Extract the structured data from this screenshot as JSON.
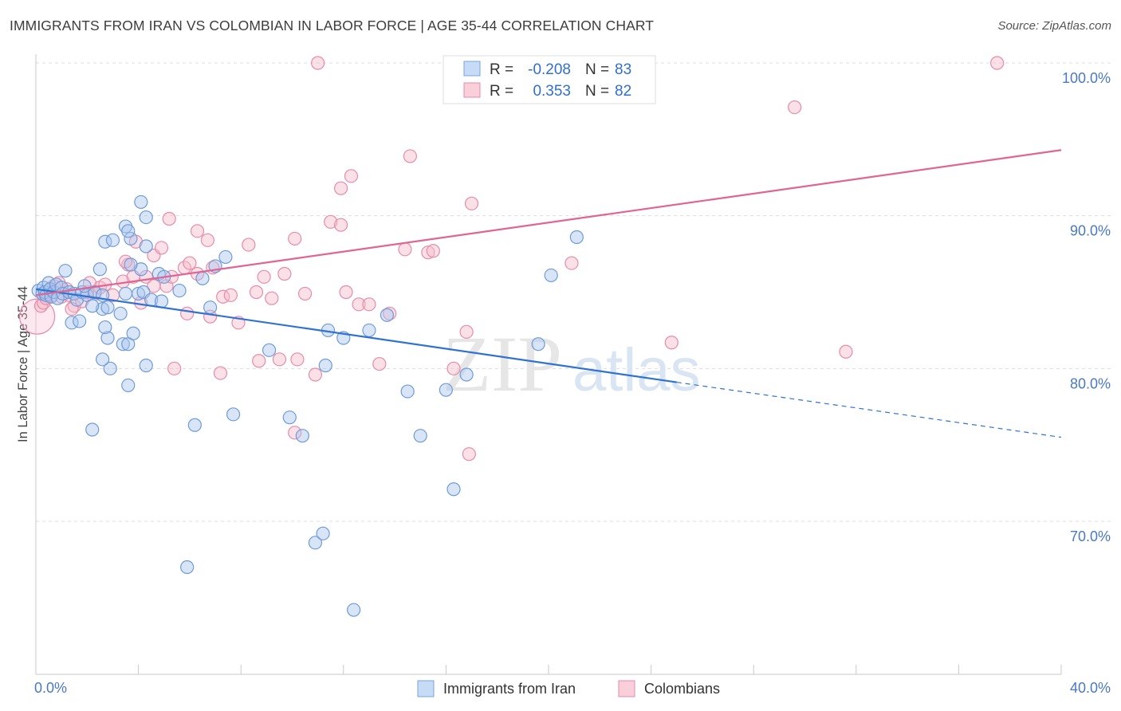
{
  "header": {
    "title": "IMMIGRANTS FROM IRAN VS COLOMBIAN IN LABOR FORCE | AGE 35-44 CORRELATION CHART",
    "source": "Source: ZipAtlas.com"
  },
  "watermark": {
    "part1": "ZIP",
    "part2": "atlas"
  },
  "colors": {
    "blue_fill": "#a9c6ee",
    "blue_stroke": "#6f9ad9",
    "blue_line": "#2f72d1",
    "pink_fill": "#f5bccd",
    "pink_stroke": "#e98aa8",
    "pink_line": "#e06592",
    "label_blue": "#4a78c8",
    "grid": "#dddddd"
  },
  "stats_box": {
    "rows": [
      {
        "r_label": "R =",
        "r_value": "-0.208",
        "n_label": "N =",
        "n_value": "83",
        "series": "blue"
      },
      {
        "r_label": "R =",
        "r_value": "0.353",
        "n_label": "N =",
        "n_value": "82",
        "series": "pink"
      }
    ]
  },
  "chart_data": {
    "type": "scatter",
    "title": "IMMIGRANTS FROM IRAN VS COLOMBIAN IN LABOR FORCE | AGE 35-44 CORRELATION CHART",
    "xlabel": "",
    "ylabel": "In Labor Force | Age 35-44",
    "xlim": [
      0,
      40
    ],
    "ylim": [
      61.5,
      101.5
    ],
    "x_tick_labels": [
      "0.0%",
      "40.0%"
    ],
    "y_ticks": [
      70,
      80,
      90,
      100
    ],
    "y_tick_labels": [
      "70.0%",
      "80.0%",
      "90.0%",
      "100.0%"
    ],
    "grid": "horizontal dashed",
    "legend_position": "bottom-center",
    "series": [
      {
        "name": "Immigrants from Iran",
        "color": "blue",
        "trend": {
          "x": [
            0,
            25
          ],
          "y": [
            85.2,
            79.1
          ],
          "dashed_to": [
            40,
            75.5
          ]
        },
        "points": [
          [
            0.1,
            85.1
          ],
          [
            0.25,
            84.9
          ],
          [
            0.3,
            85.3
          ],
          [
            0.35,
            85.0
          ],
          [
            0.4,
            84.8
          ],
          [
            0.5,
            85.6
          ],
          [
            0.55,
            85.2
          ],
          [
            0.6,
            84.7
          ],
          [
            0.7,
            85.0
          ],
          [
            0.8,
            85.5
          ],
          [
            0.85,
            84.6
          ],
          [
            1.0,
            85.3
          ],
          [
            1.05,
            84.9
          ],
          [
            1.15,
            86.4
          ],
          [
            1.3,
            85.0
          ],
          [
            1.5,
            84.9
          ],
          [
            1.6,
            84.5
          ],
          [
            1.8,
            85.0
          ],
          [
            2.0,
            84.8
          ],
          [
            2.3,
            85.0
          ],
          [
            1.4,
            83.0
          ],
          [
            1.7,
            83.1
          ],
          [
            2.8,
            82.0
          ],
          [
            3.4,
            81.6
          ],
          [
            3.6,
            81.6
          ],
          [
            2.9,
            80.0
          ],
          [
            2.6,
            80.6
          ],
          [
            2.7,
            82.7
          ],
          [
            3.8,
            82.3
          ],
          [
            1.9,
            85.4
          ],
          [
            2.5,
            86.5
          ],
          [
            2.6,
            83.9
          ],
          [
            2.2,
            84.1
          ],
          [
            2.6,
            84.8
          ],
          [
            3.5,
            84.9
          ],
          [
            3.3,
            83.6
          ],
          [
            4.0,
            84.9
          ],
          [
            4.2,
            85.0
          ],
          [
            4.5,
            84.5
          ],
          [
            4.1,
            86.5
          ],
          [
            3.7,
            86.8
          ],
          [
            4.3,
            88.0
          ],
          [
            4.8,
            86.2
          ],
          [
            4.9,
            84.4
          ],
          [
            5.0,
            86.0
          ],
          [
            5.6,
            85.1
          ],
          [
            6.5,
            85.9
          ],
          [
            7.0,
            86.7
          ],
          [
            7.4,
            87.3
          ],
          [
            6.8,
            84.0
          ],
          [
            3.7,
            88.5
          ],
          [
            3.5,
            89.3
          ],
          [
            2.7,
            88.3
          ],
          [
            3.0,
            88.4
          ],
          [
            3.6,
            89.0
          ],
          [
            4.3,
            89.9
          ],
          [
            4.1,
            90.9
          ],
          [
            2.8,
            84.0
          ],
          [
            3.6,
            78.9
          ],
          [
            2.2,
            76.0
          ],
          [
            6.2,
            76.3
          ],
          [
            7.7,
            77.0
          ],
          [
            9.9,
            76.8
          ],
          [
            10.4,
            75.6
          ],
          [
            9.1,
            81.2
          ],
          [
            11.3,
            80.2
          ],
          [
            11.4,
            82.5
          ],
          [
            12.0,
            82.0
          ],
          [
            13.0,
            82.5
          ],
          [
            13.7,
            83.5
          ],
          [
            14.5,
            78.5
          ],
          [
            16.0,
            78.6
          ],
          [
            15.0,
            75.6
          ],
          [
            16.3,
            72.1
          ],
          [
            16.8,
            79.6
          ],
          [
            19.6,
            81.6
          ],
          [
            20.1,
            86.1
          ],
          [
            21.1,
            88.6
          ],
          [
            5.9,
            67.0
          ],
          [
            10.9,
            68.6
          ],
          [
            11.2,
            69.2
          ],
          [
            12.4,
            64.2
          ],
          [
            4.3,
            80.2
          ]
        ]
      },
      {
        "name": "Colombians",
        "color": "pink",
        "trend": {
          "x": [
            0,
            40
          ],
          "y": [
            84.8,
            94.3
          ]
        },
        "points": [
          [
            0.05,
            83.4
          ],
          [
            0.2,
            84.1
          ],
          [
            0.3,
            84.3
          ],
          [
            0.4,
            84.6
          ],
          [
            0.5,
            85.1
          ],
          [
            0.6,
            84.8
          ],
          [
            0.7,
            85.4
          ],
          [
            0.9,
            85.6
          ],
          [
            1.0,
            84.7
          ],
          [
            1.2,
            85.2
          ],
          [
            1.3,
            84.8
          ],
          [
            1.5,
            84.1
          ],
          [
            1.8,
            84.4
          ],
          [
            2.0,
            85.0
          ],
          [
            2.3,
            84.9
          ],
          [
            2.5,
            85.3
          ],
          [
            2.7,
            85.5
          ],
          [
            3.0,
            84.8
          ],
          [
            3.4,
            85.7
          ],
          [
            3.6,
            86.8
          ],
          [
            3.8,
            86.0
          ],
          [
            4.1,
            84.3
          ],
          [
            4.3,
            86.0
          ],
          [
            4.6,
            87.4
          ],
          [
            4.9,
            87.9
          ],
          [
            5.1,
            85.4
          ],
          [
            5.3,
            86.0
          ],
          [
            5.8,
            86.6
          ],
          [
            6.0,
            86.9
          ],
          [
            6.3,
            86.2
          ],
          [
            6.7,
            88.4
          ],
          [
            6.9,
            86.6
          ],
          [
            6.8,
            83.4
          ],
          [
            7.3,
            84.7
          ],
          [
            7.6,
            84.8
          ],
          [
            7.9,
            83.0
          ],
          [
            8.3,
            88.1
          ],
          [
            8.6,
            85.0
          ],
          [
            8.9,
            86.0
          ],
          [
            9.2,
            84.6
          ],
          [
            10.1,
            88.5
          ],
          [
            10.5,
            84.9
          ],
          [
            10.9,
            79.6
          ],
          [
            11.5,
            89.6
          ],
          [
            12.1,
            85.0
          ],
          [
            12.6,
            84.2
          ],
          [
            13.0,
            84.2
          ],
          [
            13.8,
            83.6
          ],
          [
            14.4,
            87.8
          ],
          [
            15.3,
            87.6
          ],
          [
            15.5,
            87.7
          ],
          [
            16.3,
            80.0
          ],
          [
            16.8,
            82.4
          ],
          [
            11.9,
            91.8
          ],
          [
            12.3,
            92.6
          ],
          [
            14.6,
            93.9
          ],
          [
            17.0,
            90.8
          ],
          [
            5.4,
            80.0
          ],
          [
            5.9,
            83.6
          ],
          [
            7.2,
            79.7
          ],
          [
            8.7,
            80.5
          ],
          [
            9.5,
            80.6
          ],
          [
            10.1,
            75.8
          ],
          [
            10.2,
            80.6
          ],
          [
            13.4,
            80.3
          ],
          [
            16.9,
            74.4
          ],
          [
            4.6,
            85.4
          ],
          [
            3.5,
            87.0
          ],
          [
            2.1,
            85.6
          ],
          [
            1.4,
            83.9
          ],
          [
            3.9,
            88.3
          ],
          [
            5.2,
            89.8
          ],
          [
            6.3,
            89.0
          ],
          [
            9.7,
            86.2
          ],
          [
            11.9,
            89.4
          ],
          [
            20.9,
            86.9
          ],
          [
            24.8,
            81.7
          ],
          [
            29.6,
            97.1
          ],
          [
            31.6,
            81.1
          ],
          [
            37.5,
            100.0
          ],
          [
            22.4,
            100.0
          ],
          [
            11.0,
            100.0
          ]
        ]
      }
    ]
  },
  "legend": {
    "items": [
      {
        "label": "Immigrants from Iran",
        "series": "blue"
      },
      {
        "label": "Colombians",
        "series": "pink"
      }
    ]
  }
}
